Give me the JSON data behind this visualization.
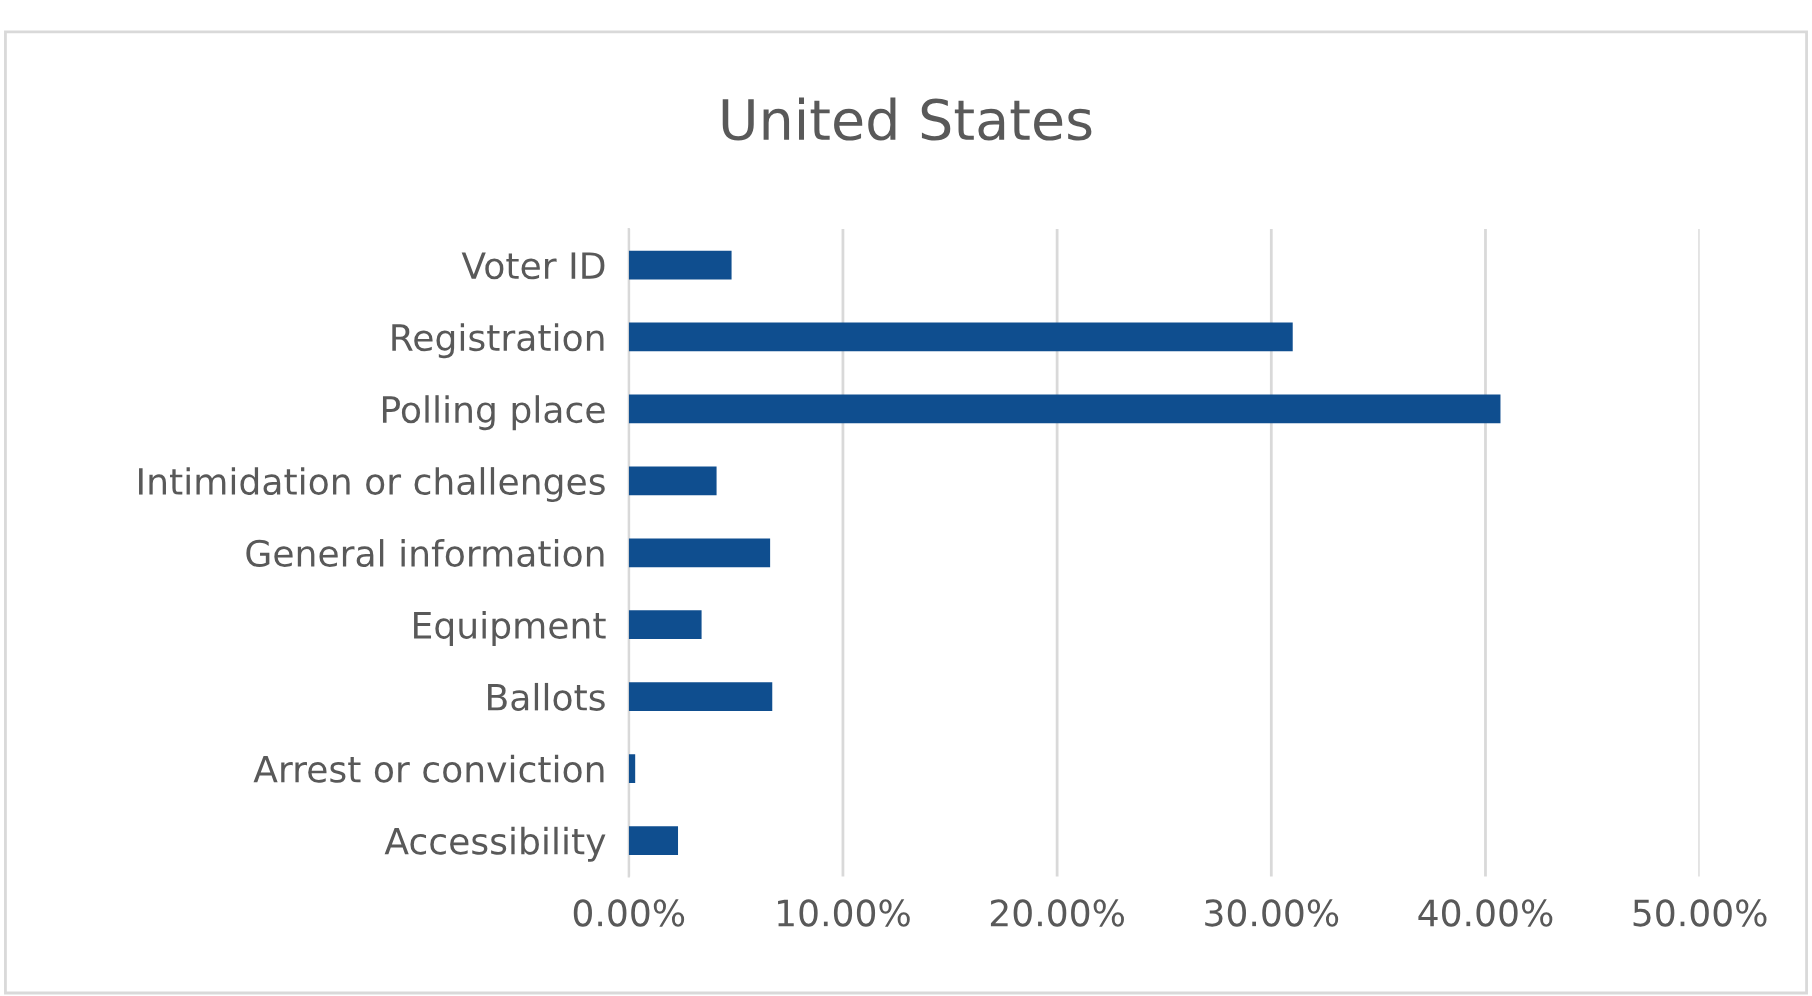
{
  "chart_data": {
    "type": "bar",
    "orientation": "horizontal",
    "title": "United States",
    "categories": [
      "Voter ID",
      "Registration",
      "Polling place",
      "Intimidation or challenges",
      "General information",
      "Equipment",
      "Ballots",
      "Arrest or conviction",
      "Accessibility"
    ],
    "values": [
      4.8,
      31.0,
      40.7,
      4.1,
      6.6,
      3.4,
      6.7,
      0.3,
      2.3
    ],
    "color": "#0f4e8f",
    "xlim": [
      0,
      50
    ],
    "xticks": [
      {
        "value": 0,
        "label": "0.00%"
      },
      {
        "value": 10,
        "label": "10.00%"
      },
      {
        "value": 20,
        "label": "20.00%"
      },
      {
        "value": 30,
        "label": "30.00%"
      },
      {
        "value": 40,
        "label": "40.00%"
      },
      {
        "value": 50,
        "label": "50.00%"
      }
    ],
    "grid": "x",
    "legend": false
  }
}
